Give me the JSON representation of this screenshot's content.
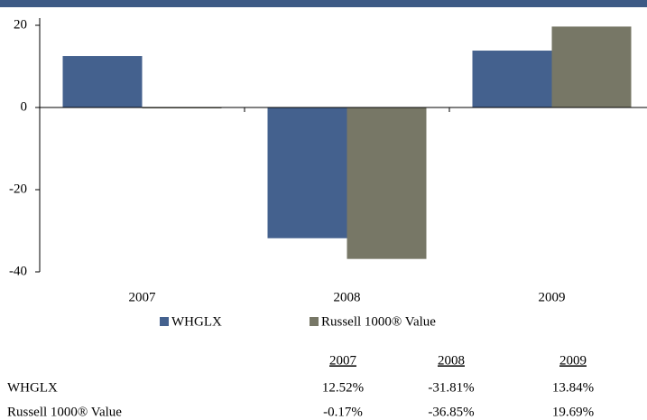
{
  "chart_data": {
    "type": "bar",
    "categories": [
      "2007",
      "2008",
      "2009"
    ],
    "series": [
      {
        "name": "WHGLX",
        "color": "#44618e",
        "values": [
          12.52,
          -31.81,
          13.84
        ],
        "value_labels": [
          "12.52%",
          "-31.81%",
          "13.84%"
        ]
      },
      {
        "name": "Russell 1000® Value",
        "color": "#777766",
        "values": [
          -0.17,
          -36.85,
          19.69
        ],
        "value_labels": [
          "-0.17%",
          "-36.85%",
          "19.69%"
        ]
      }
    ],
    "ylim": [
      -40,
      20
    ],
    "yticks": [
      -40,
      -20,
      0,
      20
    ],
    "grid": false
  }
}
